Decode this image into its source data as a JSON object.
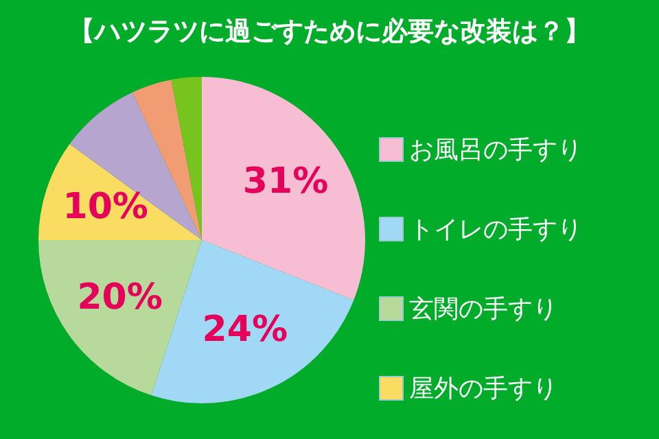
{
  "chart_data": {
    "type": "pie",
    "title": "【ハツラツに過ごすために必要な改装は？】",
    "categories": [
      "お風呂の手すり",
      "トイレの手すり",
      "玄関の手すり",
      "屋外の手すり",
      null,
      null,
      null
    ],
    "values": [
      31,
      24,
      20,
      10,
      8,
      4,
      3
    ],
    "colors": [
      "#f7bed3",
      "#a1d8f5",
      "#b7d99c",
      "#fbdc63",
      "#b6a5ce",
      "#f19c73",
      "#77c41e"
    ],
    "value_labels": [
      "31%",
      "24%",
      "20%",
      "10%",
      null,
      null,
      null
    ],
    "legend": "right"
  }
}
